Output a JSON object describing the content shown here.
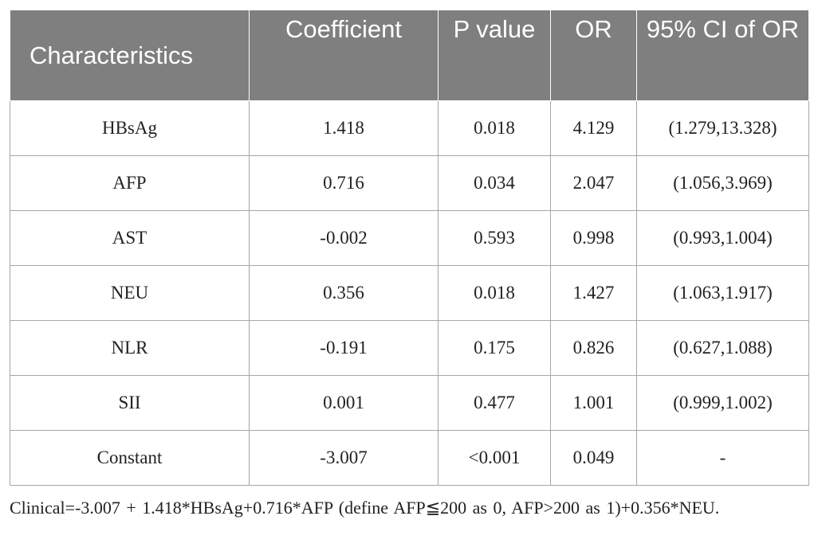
{
  "table": {
    "headers": [
      "Characteristics",
      "Coefficient",
      "P value",
      "OR",
      "95% CI of OR"
    ],
    "rows": [
      [
        "HBsAg",
        "1.418",
        "0.018",
        "4.129",
        "(1.279,13.328)"
      ],
      [
        "AFP",
        "0.716",
        "0.034",
        "2.047",
        "(1.056,3.969)"
      ],
      [
        "AST",
        "-0.002",
        "0.593",
        "0.998",
        "(0.993,1.004)"
      ],
      [
        "NEU",
        "0.356",
        "0.018",
        "1.427",
        "(1.063,1.917)"
      ],
      [
        "NLR",
        "-0.191",
        "0.175",
        "0.826",
        "(0.627,1.088)"
      ],
      [
        "SII",
        "0.001",
        "0.477",
        "1.001",
        "(0.999,1.002)"
      ],
      [
        "Constant",
        "-3.007",
        "<0.001",
        "0.049",
        "-"
      ]
    ]
  },
  "footnote": "Clinical=-3.007 + 1.418*HBsAg+0.716*AFP (define AFP≦200 as 0, AFP>200 as 1)+0.356*NEU.",
  "colors": {
    "header_bg": "#7f7f7f",
    "header_text": "#ffffff",
    "border": "#a6a6a6"
  }
}
